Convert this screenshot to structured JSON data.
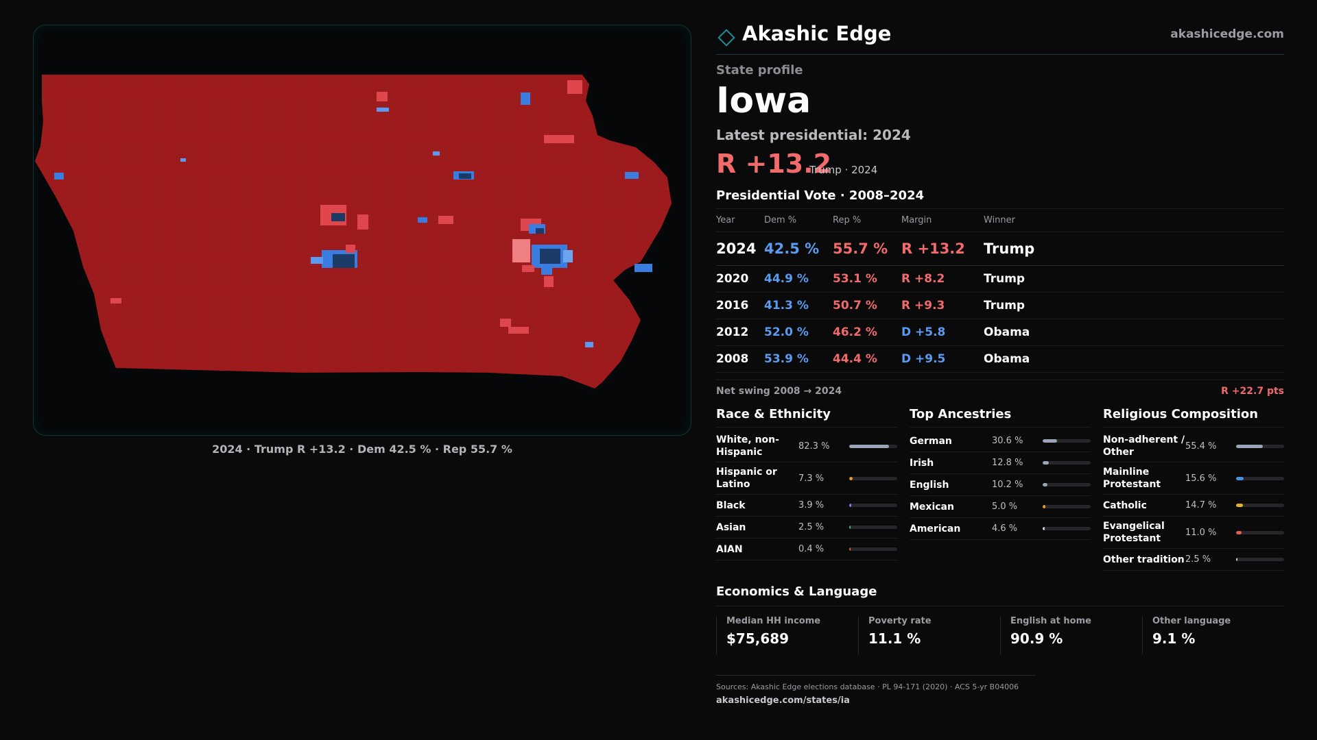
{
  "brand": {
    "name": "Akashic Edge",
    "url": "akashicedge.com",
    "accent": "#1f8c97"
  },
  "profile": {
    "eyebrow": "State profile",
    "state": "Iowa",
    "latest_label": "Latest presidential: 2024",
    "margin": "R +13.2",
    "margin_sub": "Trump · 2024"
  },
  "map": {
    "caption": "2024 · Trump R +13.2 · Dem 42.5 % · Rep 55.7 %",
    "colors": {
      "rep": "#9e1b1d",
      "rep_light": "#e0474c",
      "dem_dark": "#1b3a66",
      "dem": "#3a7de0"
    }
  },
  "votes": {
    "title": "Presidential Vote · 2008–2024",
    "headers": [
      "Year",
      "Dem %",
      "Rep %",
      "Margin",
      "Winner"
    ],
    "rows": [
      {
        "year": "2024",
        "dem": "42.5 %",
        "rep": "55.7 %",
        "margin": "R +13.2",
        "party": "R",
        "winner": "Trump"
      },
      {
        "year": "2020",
        "dem": "44.9 %",
        "rep": "53.1 %",
        "margin": "R +8.2",
        "party": "R",
        "winner": "Trump"
      },
      {
        "year": "2016",
        "dem": "41.3 %",
        "rep": "50.7 %",
        "margin": "R +9.3",
        "party": "R",
        "winner": "Trump"
      },
      {
        "year": "2012",
        "dem": "52.0 %",
        "rep": "46.2 %",
        "margin": "D +5.8",
        "party": "D",
        "winner": "Obama"
      },
      {
        "year": "2008",
        "dem": "53.9 %",
        "rep": "44.4 %",
        "margin": "D +9.5",
        "party": "D",
        "winner": "Obama"
      }
    ],
    "swing_label": "Net swing 2008 → 2024",
    "swing_value": "R +22.7 pts"
  },
  "race": {
    "title": "Race & Ethnicity",
    "items": [
      {
        "label": "White, non-Hispanic",
        "value": "82.3 %",
        "share": 0.823,
        "color": "#9aa6b8"
      },
      {
        "label": "Hispanic or Latino",
        "value": "7.3 %",
        "share": 0.073,
        "color": "#e39a2b"
      },
      {
        "label": "Black",
        "value": "3.9 %",
        "share": 0.039,
        "color": "#8b7cf0"
      },
      {
        "label": "Asian",
        "value": "2.5 %",
        "share": 0.025,
        "color": "#3fc08f"
      },
      {
        "label": "AIAN",
        "value": "0.4 %",
        "share": 0.004,
        "color": "#e0604a"
      }
    ]
  },
  "ancestry": {
    "title": "Top Ancestries",
    "items": [
      {
        "label": "German",
        "value": "30.6 %",
        "share": 0.306,
        "color": "#9aa6b8"
      },
      {
        "label": "Irish",
        "value": "12.8 %",
        "share": 0.128,
        "color": "#9aa6b8"
      },
      {
        "label": "English",
        "value": "10.2 %",
        "share": 0.102,
        "color": "#9aa6b8"
      },
      {
        "label": "Mexican",
        "value": "5.0 %",
        "share": 0.05,
        "color": "#e39a2b"
      },
      {
        "label": "American",
        "value": "4.6 %",
        "share": 0.046,
        "color": "#d0d0d4"
      }
    ]
  },
  "religion": {
    "title": "Religious Composition",
    "items": [
      {
        "label": "Non-adherent / Other",
        "value": "55.4 %",
        "share": 0.554,
        "color": "#9aa6b8"
      },
      {
        "label": "Mainline Protestant",
        "value": "15.6 %",
        "share": 0.156,
        "color": "#4a90e2"
      },
      {
        "label": "Catholic",
        "value": "14.7 %",
        "share": 0.147,
        "color": "#e3b42b"
      },
      {
        "label": "Evangelical Protestant",
        "value": "11.0 %",
        "share": 0.11,
        "color": "#e0604a"
      },
      {
        "label": "Other tradition",
        "value": "2.5 %",
        "share": 0.025,
        "color": "#d0d0d4"
      }
    ]
  },
  "economics": {
    "title": "Economics & Language",
    "items": [
      {
        "label": "Median HH income",
        "value": "$75,689"
      },
      {
        "label": "Poverty rate",
        "value": "11.1 %"
      },
      {
        "label": "English at home",
        "value": "90.9 %"
      },
      {
        "label": "Other language",
        "value": "9.1 %"
      }
    ]
  },
  "footer": {
    "sources": "Sources: Akashic Edge elections database · PL 94-171 (2020) · ACS 5-yr B04006",
    "url": "akashicedge.com/states/ia"
  }
}
